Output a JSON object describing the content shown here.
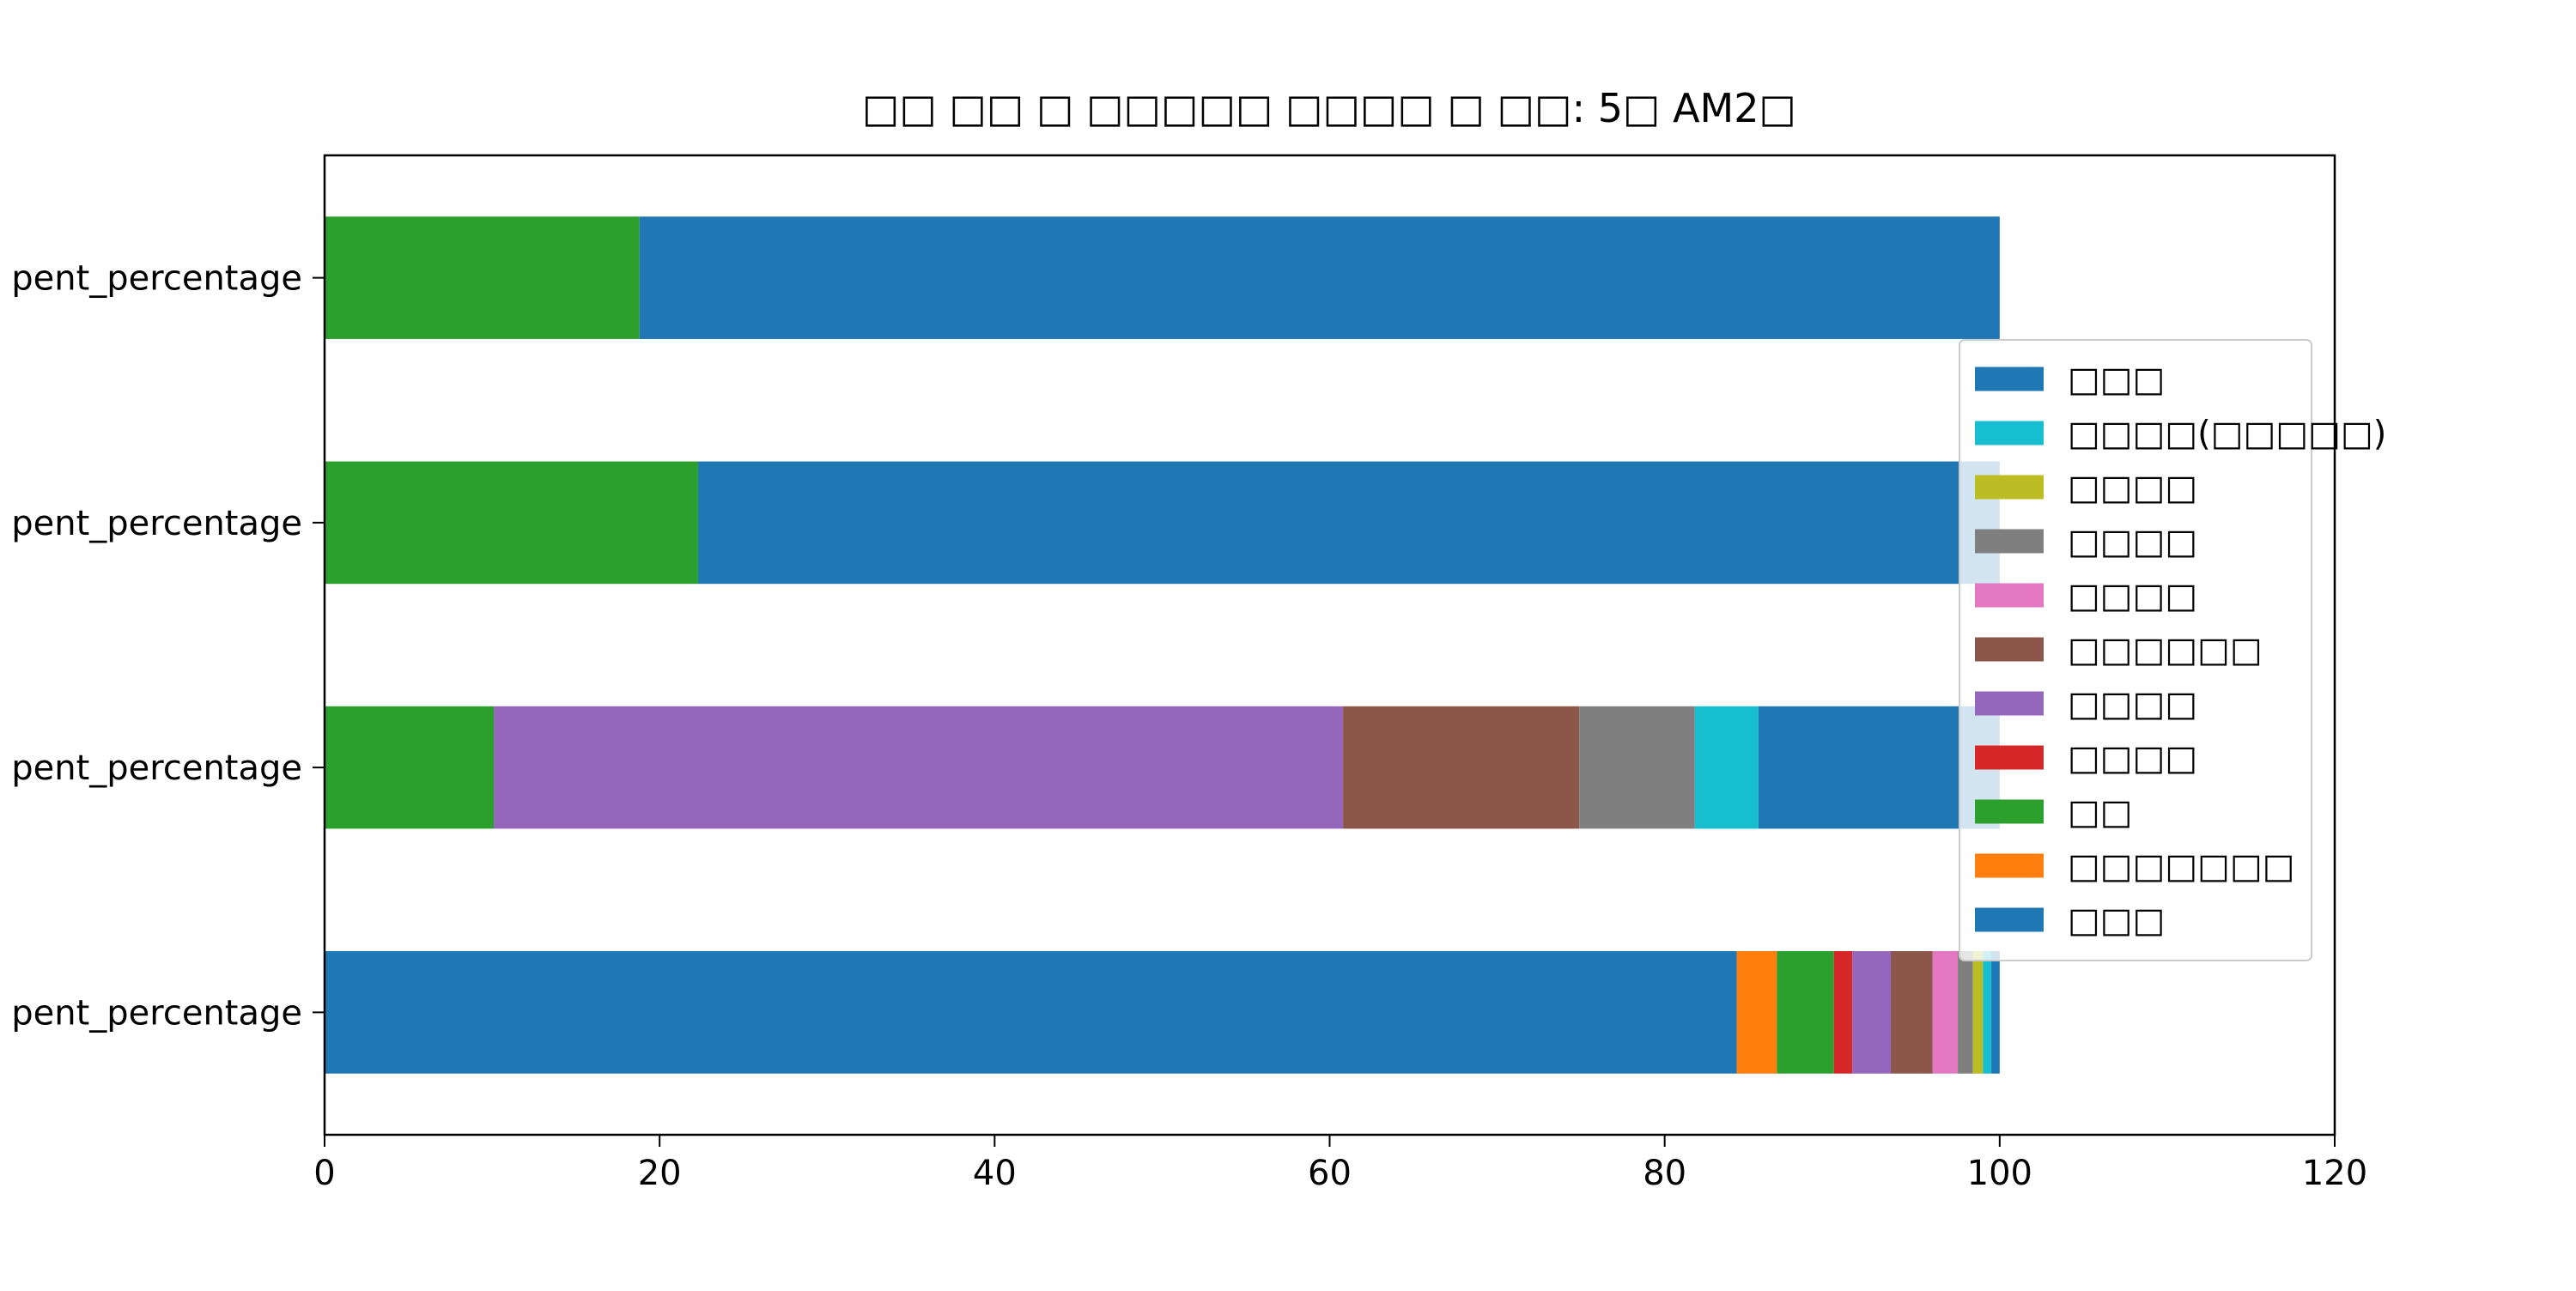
{
  "chart_data": {
    "type": "bar",
    "orientation": "horizontal",
    "stacked": true,
    "title": "□□ □□ □ □□□□□ □□□□ □ □□: 5□ AM2□",
    "xlabel": "",
    "ylabel": "",
    "xlim": [
      0,
      120
    ],
    "x_ticks": [
      0,
      20,
      40,
      60,
      80,
      100,
      120
    ],
    "grid": false,
    "legend_position": "right",
    "categories": [
      "pent_percentage",
      "pent_percentage",
      "pent_percentage",
      "pent_percentage"
    ],
    "bars": [
      {
        "category": "pent_percentage",
        "segments": [
          {
            "label": "□□□",
            "color": "#1f77b4",
            "value": 84.3
          },
          {
            "label": "□□□□□□□",
            "color": "#ff7f0e",
            "value": 2.4
          },
          {
            "label": "□□",
            "color": "#2ca02c",
            "value": 3.4
          },
          {
            "label": "□□□□",
            "color": "#d62728",
            "value": 1.1
          },
          {
            "label": "□□□□",
            "color": "#9467bd",
            "value": 2.3
          },
          {
            "label": "□□□□□□",
            "color": "#8c564b",
            "value": 2.5
          },
          {
            "label": "□□□□",
            "color": "#e377c2",
            "value": 1.5
          },
          {
            "label": "□□□□",
            "color": "#7f7f7f",
            "value": 0.9
          },
          {
            "label": "□□□□",
            "color": "#bcbd22",
            "value": 0.6
          },
          {
            "label": "□□□□(□□□□□)",
            "color": "#17becf",
            "value": 0.5
          },
          {
            "label": "□□□",
            "color": "#1f77b4",
            "value": 0.5
          }
        ]
      },
      {
        "category": "pent_percentage",
        "segments": [
          {
            "label": "□□",
            "color": "#2ca02c",
            "value": 10.1
          },
          {
            "label": "□□□□",
            "color": "#9467bd",
            "value": 50.7
          },
          {
            "label": "□□□□□□",
            "color": "#8c564b",
            "value": 14.1
          },
          {
            "label": "□□□□",
            "color": "#7f7f7f",
            "value": 6.9
          },
          {
            "label": "□□□□(□□□□□)",
            "color": "#17becf",
            "value": 3.8
          },
          {
            "label": "□□□",
            "color": "#1f77b4",
            "value": 14.4
          }
        ]
      },
      {
        "category": "pent_percentage",
        "segments": [
          {
            "label": "□□",
            "color": "#2ca02c",
            "value": 22.3
          },
          {
            "label": "□□□",
            "color": "#1f77b4",
            "value": 77.7
          }
        ]
      },
      {
        "category": "pent_percentage",
        "segments": [
          {
            "label": "□□",
            "color": "#2ca02c",
            "value": 18.8
          },
          {
            "label": "□□□",
            "color": "#1f77b4",
            "value": 81.2
          }
        ]
      }
    ],
    "legend": [
      {
        "label": "□□□",
        "color": "#1f77b4"
      },
      {
        "label": "□□□□(□□□□□)",
        "color": "#17becf"
      },
      {
        "label": "□□□□",
        "color": "#bcbd22"
      },
      {
        "label": "□□□□",
        "color": "#7f7f7f"
      },
      {
        "label": "□□□□",
        "color": "#e377c2"
      },
      {
        "label": "□□□□□□",
        "color": "#8c564b"
      },
      {
        "label": "□□□□",
        "color": "#9467bd"
      },
      {
        "label": "□□□□",
        "color": "#d62728"
      },
      {
        "label": "□□",
        "color": "#2ca02c"
      },
      {
        "label": "□□□□□□□",
        "color": "#ff7f0e"
      },
      {
        "label": "□□□",
        "color": "#1f77b4"
      }
    ]
  }
}
